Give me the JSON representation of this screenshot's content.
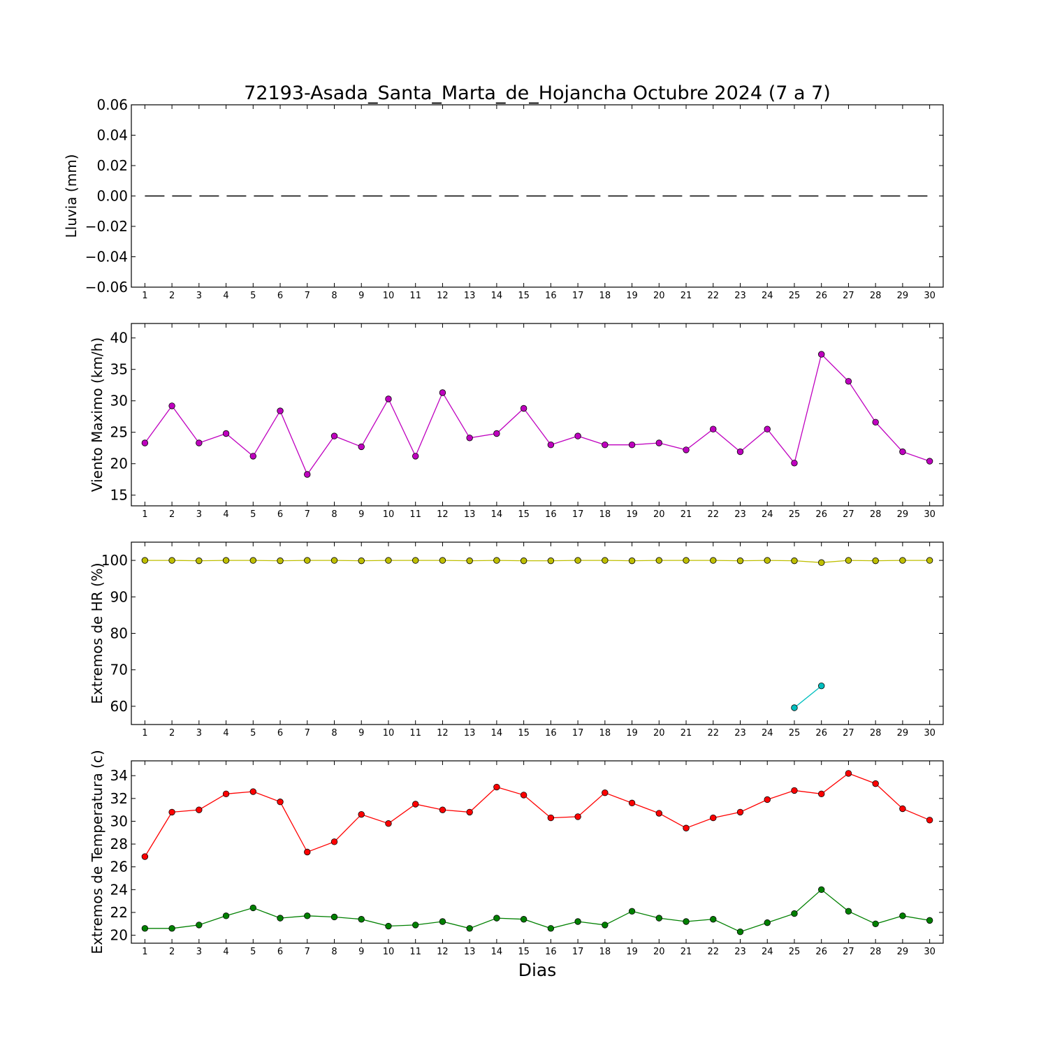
{
  "title": "72193-Asada_Santa_Marta_de_Hojancha Octubre 2024  (7 a 7)",
  "xlabel": "Dias",
  "chart_data": [
    {
      "type": "line",
      "ylabel": "Lluvia (mm)",
      "ylim": [
        -0.06,
        0.06
      ],
      "yticks": [
        0.06,
        0.04,
        0.02,
        0.0,
        -0.02,
        -0.04,
        -0.06
      ],
      "ytick_labels": [
        "0.06",
        "0.04",
        "0.02",
        "0.00",
        "−0.02",
        "−0.04",
        "−0.06"
      ],
      "xlim": [
        0.5,
        30.5
      ],
      "x": [
        1,
        2,
        3,
        4,
        5,
        6,
        7,
        8,
        9,
        10,
        11,
        12,
        13,
        14,
        15,
        16,
        17,
        18,
        19,
        20,
        21,
        22,
        23,
        24,
        25,
        26,
        27,
        28,
        29,
        30
      ],
      "series": [
        {
          "color": "#000000",
          "style": "dashed",
          "marker": "none",
          "values": [
            0,
            0,
            0,
            0,
            0,
            0,
            0,
            0,
            0,
            0,
            0,
            0,
            0,
            0,
            0,
            0,
            0,
            0,
            0,
            0,
            0,
            0,
            0,
            0,
            0,
            0,
            0,
            0,
            0,
            0
          ]
        }
      ]
    },
    {
      "type": "line",
      "ylabel": "Viento Maximo (km/h)",
      "ylim": [
        13.3,
        42.3
      ],
      "yticks": [
        40,
        35,
        30,
        25,
        20,
        15
      ],
      "ytick_labels": [
        "40",
        "35",
        "30",
        "25",
        "20",
        "15"
      ],
      "xlim": [
        0.5,
        30.5
      ],
      "x": [
        1,
        2,
        3,
        4,
        5,
        6,
        7,
        8,
        9,
        10,
        11,
        12,
        13,
        14,
        15,
        16,
        17,
        18,
        19,
        20,
        21,
        22,
        23,
        24,
        25,
        26,
        27,
        28,
        29,
        30
      ],
      "series": [
        {
          "color": "#bf00bf",
          "marker": "circle",
          "values": [
            23.3,
            29.2,
            23.3,
            24.8,
            21.2,
            28.4,
            18.3,
            24.4,
            22.7,
            30.3,
            21.2,
            31.3,
            24.1,
            24.8,
            28.8,
            23.0,
            24.4,
            23.0,
            23.0,
            23.3,
            22.2,
            25.5,
            21.9,
            25.5,
            20.1,
            37.4,
            33.1,
            26.6,
            21.9,
            20.4
          ]
        }
      ]
    },
    {
      "type": "line",
      "ylabel": "Extremos de HR (%)",
      "ylim": [
        55,
        105
      ],
      "yticks": [
        100,
        90,
        80,
        70,
        60
      ],
      "ytick_labels": [
        "100",
        "90",
        "80",
        "70",
        "60"
      ],
      "xlim": [
        0.5,
        30.5
      ],
      "x": [
        1,
        2,
        3,
        4,
        5,
        6,
        7,
        8,
        9,
        10,
        11,
        12,
        13,
        14,
        15,
        16,
        17,
        18,
        19,
        20,
        21,
        22,
        23,
        24,
        25,
        26,
        27,
        28,
        29,
        30
      ],
      "series": [
        {
          "color": "#bfbf00",
          "marker": "circle",
          "values": [
            100,
            100,
            99.9,
            100,
            100,
            99.9,
            100,
            100,
            99.9,
            100,
            100,
            100,
            99.9,
            100,
            99.9,
            99.9,
            100,
            100,
            99.9,
            100,
            100,
            100,
            99.9,
            100,
            99.9,
            99.4,
            100,
            99.9,
            100,
            100
          ]
        },
        {
          "color": "#00bfbf",
          "marker": "circle",
          "values": [
            null,
            null,
            null,
            null,
            null,
            null,
            null,
            null,
            null,
            null,
            null,
            null,
            null,
            null,
            null,
            null,
            null,
            null,
            null,
            null,
            null,
            null,
            null,
            null,
            59.6,
            65.6,
            null,
            null,
            null,
            null
          ]
        }
      ]
    },
    {
      "type": "line",
      "ylabel": "Extremos de Temperatura (c)",
      "ylim": [
        19.3,
        35.3
      ],
      "yticks": [
        34,
        32,
        30,
        28,
        26,
        24,
        22,
        20
      ],
      "ytick_labels": [
        "34",
        "32",
        "30",
        "28",
        "26",
        "24",
        "22",
        "20"
      ],
      "xlim": [
        0.5,
        30.5
      ],
      "x": [
        1,
        2,
        3,
        4,
        5,
        6,
        7,
        8,
        9,
        10,
        11,
        12,
        13,
        14,
        15,
        16,
        17,
        18,
        19,
        20,
        21,
        22,
        23,
        24,
        25,
        26,
        27,
        28,
        29,
        30
      ],
      "series": [
        {
          "color": "#ff0000",
          "marker": "circle",
          "values": [
            26.9,
            30.8,
            31.0,
            32.4,
            32.6,
            31.7,
            27.3,
            28.2,
            30.6,
            29.8,
            31.5,
            31.0,
            30.8,
            33.0,
            32.3,
            30.3,
            30.4,
            32.5,
            31.6,
            30.7,
            29.4,
            30.3,
            30.8,
            31.9,
            32.7,
            32.4,
            34.2,
            33.3,
            31.1,
            30.1
          ]
        },
        {
          "color": "#008000",
          "marker": "circle",
          "values": [
            20.6,
            20.6,
            20.9,
            21.7,
            22.4,
            21.5,
            21.7,
            21.6,
            21.4,
            20.8,
            20.9,
            21.2,
            20.6,
            21.5,
            21.4,
            20.6,
            21.2,
            20.9,
            22.1,
            21.5,
            21.2,
            21.4,
            20.3,
            21.1,
            21.9,
            24.0,
            22.1,
            21.0,
            21.7,
            21.3
          ]
        }
      ]
    }
  ]
}
